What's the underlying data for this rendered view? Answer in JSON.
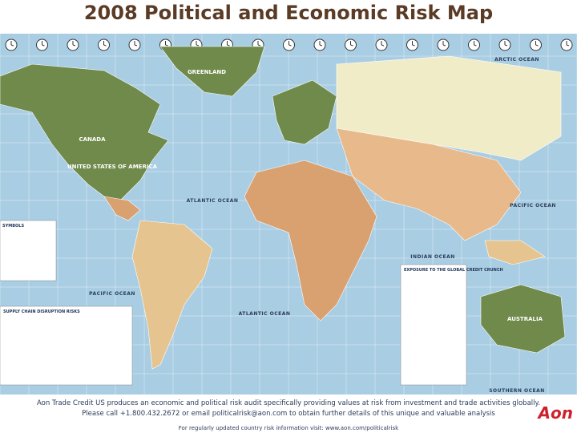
{
  "header": {
    "title": "2008 Political and Economic Risk Map"
  },
  "map": {
    "labels": [
      "ARCTIC OCEAN",
      "GREENLAND",
      "CANADA",
      "UNITED STATES OF AMERICA",
      "ATLANTIC OCEAN",
      "PACIFIC OCEAN",
      "PACIFIC OCEAN",
      "ATLANTIC OCEAN",
      "INDIAN OCEAN",
      "SOUTHERN OCEAN",
      "AUSTRALIA"
    ],
    "panels": {
      "symbols": "SYMBOLS",
      "supply_chain": "SUPPLY CHAIN DISRUPTION RISKS",
      "exposure": "EXPOSURE TO THE GLOBAL CREDIT CRUNCH"
    }
  },
  "footer": {
    "lines": [
      "Aon Trade Credit US produces an economic and political risk audit specifically providing values at risk from investment and trade activities globally.",
      "Please call +1.800.432.2672 or email politicalrisk@aon.com to obtain further details of this unique and valuable analysis",
      "For regularly updated country risk information visit: www.aon.com/politicalrisk"
    ],
    "logo": "Aon"
  }
}
